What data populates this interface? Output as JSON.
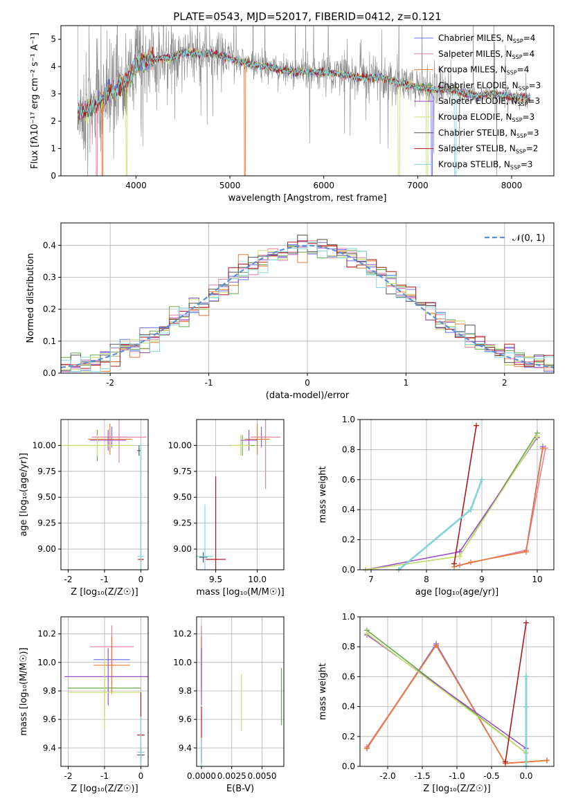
{
  "colors": {
    "Chabrier MILES": "#6f6fff",
    "Salpeter MILES": "#e87fa0",
    "Kroupa MILES": "#e8782c",
    "Chabrier ELODIE": "#6aa84f",
    "Salpeter ELODIE": "#9b4fc4",
    "Kroupa ELODIE": "#c8e070",
    "Chabrier STELIB": "#555555",
    "Salpeter STELIB": "#b01818",
    "Kroupa STELIB": "#7fd8e0",
    "spectrum": "#888888",
    "normal": "#5b8fd6"
  },
  "chart_data": [
    {
      "id": "spectrum",
      "type": "line",
      "title": "PLATE=0543, MJD=52017, FIBERID=0412, z=0.121",
      "xlabel": "wavelength [Angstrom, rest frame]",
      "ylabel": "Flux [fλ10⁻¹⁷ erg cm⁻² s⁻¹ A⁻¹]",
      "xlim": [
        3200,
        8450
      ],
      "ylim": [
        0,
        5.5
      ],
      "xticks": [
        4000,
        5000,
        6000,
        7000,
        8000
      ],
      "yticks": [
        0,
        1,
        2,
        3,
        4,
        5
      ],
      "grid": false,
      "legend_position": "upper right",
      "legend": [
        {
          "name": "Chabrier MILES",
          "nssp": "4"
        },
        {
          "name": "Salpeter MILES",
          "nssp": "4"
        },
        {
          "name": "Kroupa MILES",
          "nssp": "4"
        },
        {
          "name": "Chabrier ELODIE",
          "nssp": "3"
        },
        {
          "name": "Salpeter ELODIE",
          "nssp": "3"
        },
        {
          "name": "Kroupa ELODIE",
          "nssp": "3"
        },
        {
          "name": "Chabrier STELIB",
          "nssp": "3"
        },
        {
          "name": "Salpeter STELIB",
          "nssp": "2"
        },
        {
          "name": "Kroupa STELIB",
          "nssp": "3"
        }
      ],
      "model_continuum": {
        "x": [
          3380,
          3500,
          3600,
          3700,
          3800,
          3900,
          4000,
          4100,
          4200,
          4300,
          4400,
          4500,
          4600,
          4700,
          4800,
          4900,
          5000,
          5200,
          5400,
          5600,
          5800,
          6000,
          6200,
          6400,
          6600,
          6800,
          7000,
          7200,
          7400,
          7600,
          7800,
          8000,
          8200
        ],
        "y": [
          2.3,
          2.4,
          2.7,
          3.0,
          3.2,
          3.5,
          4.05,
          4.25,
          4.3,
          4.3,
          4.35,
          4.5,
          4.5,
          4.45,
          4.5,
          4.4,
          4.3,
          4.1,
          4.0,
          3.85,
          3.8,
          3.8,
          3.7,
          3.6,
          3.6,
          3.4,
          3.25,
          3.15,
          3.1,
          2.95,
          3.0,
          2.9,
          2.85
        ]
      }
    },
    {
      "id": "residuals",
      "type": "line",
      "xlabel": "(data-model)/error",
      "ylabel": "Normed distribution",
      "xlim": [
        -2.5,
        2.5
      ],
      "ylim": [
        0,
        0.47
      ],
      "xticks": [
        -2,
        -1,
        0,
        1,
        2
      ],
      "yticks": [
        0.0,
        0.1,
        0.2,
        0.3,
        0.4
      ],
      "grid": true,
      "legend_position": "upper right",
      "legend_label": "𝒩(0, 1)",
      "bin_width": 0.1
    },
    {
      "id": "age_vs_Z",
      "type": "scatter",
      "xlabel": "Z [log₁₀(Z/Z☉)]",
      "ylabel": "age  [log₁₀(age/yr)]",
      "xlim": [
        -2.2,
        0.2
      ],
      "ylim": [
        8.8,
        10.25
      ],
      "xticks": [
        -2,
        -1,
        0
      ],
      "yticks": [
        9.0,
        9.25,
        9.5,
        9.75,
        10.0
      ],
      "grid": true,
      "points": [
        {
          "model": "Chabrier MILES",
          "x": -0.8,
          "y": 10.08,
          "xerr": 0.45,
          "yerr": 0.1
        },
        {
          "model": "Salpeter MILES",
          "x": -0.6,
          "y": 10.08,
          "xerr": 0.75,
          "yerr": 0.25
        },
        {
          "model": "Kroupa MILES",
          "x": -0.85,
          "y": 10.06,
          "xerr": 0.6,
          "yerr": 0.15
        },
        {
          "model": "Chabrier ELODIE",
          "x": -1.2,
          "y": 10.0,
          "xerr": 0.9,
          "yerr": 0.15
        },
        {
          "model": "Salpeter ELODIE",
          "x": -0.9,
          "y": 10.05,
          "xerr": 0.5,
          "yerr": 0.1
        },
        {
          "model": "Kroupa ELODIE",
          "x": -1.2,
          "y": 10.0,
          "xerr": 1.0,
          "yerr": 0.1
        },
        {
          "model": "Chabrier STELIB",
          "x": -0.05,
          "y": 9.95,
          "xerr": 0.05,
          "yerr": 0.05
        },
        {
          "model": "Salpeter STELIB",
          "x": 0.0,
          "y": 8.9,
          "xerr": 0.08,
          "yerr": 1.0
        },
        {
          "model": "Kroupa STELIB",
          "x": 0.0,
          "y": 8.93,
          "xerr": 0.1,
          "yerr": 1.1
        }
      ]
    },
    {
      "id": "age_vs_mass",
      "type": "scatter",
      "xlabel": "mass [log₁₀(M/M☉)]",
      "ylabel": "",
      "xlim": [
        9.27,
        10.32
      ],
      "ylim": [
        8.8,
        10.25
      ],
      "xticks": [
        9.5,
        10.0
      ],
      "yticks": [
        9.0,
        9.25,
        9.5,
        9.75,
        10.0
      ],
      "grid": true,
      "points": [
        {
          "model": "Chabrier MILES",
          "x": 10.05,
          "y": 10.08,
          "xerr": 0.12,
          "yerr": 0.1
        },
        {
          "model": "Salpeter MILES",
          "x": 10.1,
          "y": 10.08,
          "xerr": 0.18,
          "yerr": 0.5
        },
        {
          "model": "Kroupa MILES",
          "x": 10.0,
          "y": 10.06,
          "xerr": 0.15,
          "yerr": 0.15
        },
        {
          "model": "Chabrier ELODIE",
          "x": 9.82,
          "y": 10.0,
          "xerr": 0.15,
          "yerr": 0.1
        },
        {
          "model": "Salpeter ELODIE",
          "x": 9.9,
          "y": 10.05,
          "xerr": 0.1,
          "yerr": 0.1
        },
        {
          "model": "Kroupa ELODIE",
          "x": 9.8,
          "y": 10.0,
          "xerr": 0.12,
          "yerr": 0.1
        },
        {
          "model": "Chabrier STELIB",
          "x": 9.35,
          "y": 8.92,
          "xerr": 0.05,
          "yerr": 0.05
        },
        {
          "model": "Salpeter STELIB",
          "x": 9.5,
          "y": 8.9,
          "xerr": 0.12,
          "yerr": 0.8
        },
        {
          "model": "Kroupa STELIB",
          "x": 9.37,
          "y": 8.93,
          "xerr": 0.1,
          "yerr": 0.5
        }
      ]
    },
    {
      "id": "weight_vs_age",
      "type": "line",
      "xlabel": "age  [log₁₀(age/yr)]",
      "ylabel": "mass weight",
      "xlim": [
        6.8,
        10.3
      ],
      "ylim": [
        0,
        1.0
      ],
      "xticks": [
        7,
        8,
        9,
        10
      ],
      "yticks": [
        0.0,
        0.2,
        0.4,
        0.6,
        0.8,
        1.0
      ],
      "grid": true,
      "series": [
        {
          "model": "Chabrier MILES",
          "x": [
            8.6,
            9.8,
            10.1
          ],
          "y": [
            0.03,
            0.13,
            0.82
          ]
        },
        {
          "model": "Salpeter MILES",
          "x": [
            8.6,
            9.8,
            10.15
          ],
          "y": [
            0.03,
            0.13,
            0.81
          ]
        },
        {
          "model": "Kroupa MILES",
          "x": [
            8.5,
            8.8,
            9.8,
            10.1
          ],
          "y": [
            0.02,
            0.05,
            0.12,
            0.81
          ]
        },
        {
          "model": "Chabrier ELODIE",
          "x": [
            6.9,
            8.6,
            10.0
          ],
          "y": [
            0.0,
            0.09,
            0.91
          ]
        },
        {
          "model": "Salpeter ELODIE",
          "x": [
            6.9,
            8.6,
            10.0
          ],
          "y": [
            0.0,
            0.12,
            0.88
          ]
        },
        {
          "model": "Kroupa ELODIE",
          "x": [
            6.9,
            8.6,
            10.0
          ],
          "y": [
            0.0,
            0.09,
            0.89
          ]
        },
        {
          "model": "Chabrier STELIB",
          "x": [
            7.5,
            8.8,
            9.0
          ],
          "y": [
            0.0,
            0.4,
            0.6
          ]
        },
        {
          "model": "Salpeter STELIB",
          "x": [
            8.5,
            8.9
          ],
          "y": [
            0.04,
            0.96
          ]
        },
        {
          "model": "Kroupa STELIB",
          "x": [
            7.5,
            8.8,
            9.0
          ],
          "y": [
            0.0,
            0.4,
            0.6
          ]
        }
      ]
    },
    {
      "id": "mass_vs_Z",
      "type": "scatter",
      "xlabel": "Z [log₁₀(Z/Z☉)]",
      "ylabel": "mass [log₁₀(M/M☉)]",
      "xlim": [
        -2.2,
        0.2
      ],
      "ylim": [
        9.27,
        10.32
      ],
      "xticks": [
        -2,
        -1,
        0
      ],
      "yticks": [
        9.4,
        9.6,
        9.8,
        10.0,
        10.2
      ],
      "grid": true,
      "points": [
        {
          "model": "Chabrier MILES",
          "x": -0.8,
          "y": 10.02,
          "xerr": 0.5,
          "yerr": 0.18
        },
        {
          "model": "Salpeter MILES",
          "x": -0.8,
          "y": 10.11,
          "xerr": 0.6,
          "yerr": 0.15
        },
        {
          "model": "Kroupa MILES",
          "x": -0.8,
          "y": 9.98,
          "xerr": 0.5,
          "yerr": 0.2
        },
        {
          "model": "Chabrier ELODIE",
          "x": -1.0,
          "y": 9.82,
          "xerr": 1.0,
          "yerr": 0.2
        },
        {
          "model": "Salpeter ELODIE",
          "x": -0.9,
          "y": 9.9,
          "xerr": 1.2,
          "yerr": 0.2
        },
        {
          "model": "Kroupa ELODIE",
          "x": -1.0,
          "y": 9.79,
          "xerr": 1.0,
          "yerr": 0.25
        },
        {
          "model": "Chabrier STELIB",
          "x": 0.0,
          "y": 9.35,
          "xerr": 0.1,
          "yerr": 0.05
        },
        {
          "model": "Salpeter STELIB",
          "x": 0.0,
          "y": 9.49,
          "xerr": 0.1,
          "yerr": 0.3
        },
        {
          "model": "Kroupa STELIB",
          "x": 0.0,
          "y": 9.37,
          "xerr": 0.1,
          "yerr": 0.25
        }
      ]
    },
    {
      "id": "mass_vs_ebv",
      "type": "scatter",
      "xlabel": "E(B-V)",
      "ylabel": "",
      "xlim": [
        -0.0004,
        0.0068
      ],
      "ylim": [
        9.27,
        10.32
      ],
      "xticks": [
        0.0,
        0.0025,
        0.005
      ],
      "xticklabels": [
        "0.0000",
        "0.0025",
        "0.0050"
      ],
      "yticks": [
        9.4,
        9.6,
        9.8,
        10.0,
        10.2
      ],
      "grid": true,
      "points": [
        {
          "model": "Chabrier MILES",
          "x": 0.0,
          "y": 10.02,
          "xerr": 0,
          "yerr": 0.2
        },
        {
          "model": "Salpeter MILES",
          "x": 0.0,
          "y": 10.11,
          "xerr": 0,
          "yerr": 0.15
        },
        {
          "model": "Kroupa MILES",
          "x": 0.0,
          "y": 9.98,
          "xerr": 0,
          "yerr": 0.2
        },
        {
          "model": "Chabrier ELODIE",
          "x": 0.0066,
          "y": 9.76,
          "xerr": 0,
          "yerr": 0.2
        },
        {
          "model": "Salpeter ELODIE",
          "x": 0.0,
          "y": 9.9,
          "xerr": 0,
          "yerr": 0.2
        },
        {
          "model": "Kroupa ELODIE",
          "x": 0.0033,
          "y": 9.72,
          "xerr": 0,
          "yerr": 0.2
        },
        {
          "model": "Chabrier STELIB",
          "x": 0.0,
          "y": 9.35,
          "xerr": 0,
          "yerr": 0.05
        },
        {
          "model": "Salpeter STELIB",
          "x": 0.0,
          "y": 9.49,
          "xerr": 0,
          "yerr": 0.2
        },
        {
          "model": "Kroupa STELIB",
          "x": 0.0,
          "y": 9.37,
          "xerr": 0,
          "yerr": 0.1
        }
      ]
    },
    {
      "id": "weight_vs_Z",
      "type": "line",
      "xlabel": "Z [log₁₀(Z/Z☉)]",
      "ylabel": "mass weight",
      "xlim": [
        -2.4,
        0.4
      ],
      "ylim": [
        0,
        1.0
      ],
      "xticks": [
        -2.0,
        -1.5,
        -1.0,
        -0.5,
        0.0
      ],
      "yticks": [
        0.0,
        0.2,
        0.4,
        0.6,
        0.8,
        1.0
      ],
      "grid": true,
      "series": [
        {
          "model": "Chabrier MILES",
          "x": [
            -2.3,
            -1.3,
            -0.3,
            0.3
          ],
          "y": [
            0.12,
            0.82,
            0.02,
            0.04
          ]
        },
        {
          "model": "Salpeter MILES",
          "x": [
            -2.3,
            -1.3,
            -0.3,
            0.3
          ],
          "y": [
            0.13,
            0.81,
            0.02,
            0.04
          ]
        },
        {
          "model": "Kroupa MILES",
          "x": [
            -2.3,
            -1.3,
            -0.3,
            0.3
          ],
          "y": [
            0.12,
            0.81,
            0.02,
            0.04
          ]
        },
        {
          "model": "Chabrier ELODIE",
          "x": [
            -2.3,
            0.0
          ],
          "y": [
            0.91,
            0.09
          ]
        },
        {
          "model": "Salpeter ELODIE",
          "x": [
            -2.3,
            0.0
          ],
          "y": [
            0.88,
            0.12
          ]
        },
        {
          "model": "Kroupa ELODIE",
          "x": [
            -2.3,
            0.0
          ],
          "y": [
            0.89,
            0.09
          ]
        },
        {
          "model": "Chabrier STELIB",
          "x": [
            0.0,
            0.0,
            0.0
          ],
          "y": [
            0.0,
            0.4,
            0.6
          ]
        },
        {
          "model": "Salpeter STELIB",
          "x": [
            -0.3,
            0.0
          ],
          "y": [
            0.03,
            0.96
          ]
        },
        {
          "model": "Kroupa STELIB",
          "x": [
            0.0,
            0.0,
            0.0
          ],
          "y": [
            0.0,
            0.4,
            0.6
          ]
        }
      ]
    }
  ]
}
